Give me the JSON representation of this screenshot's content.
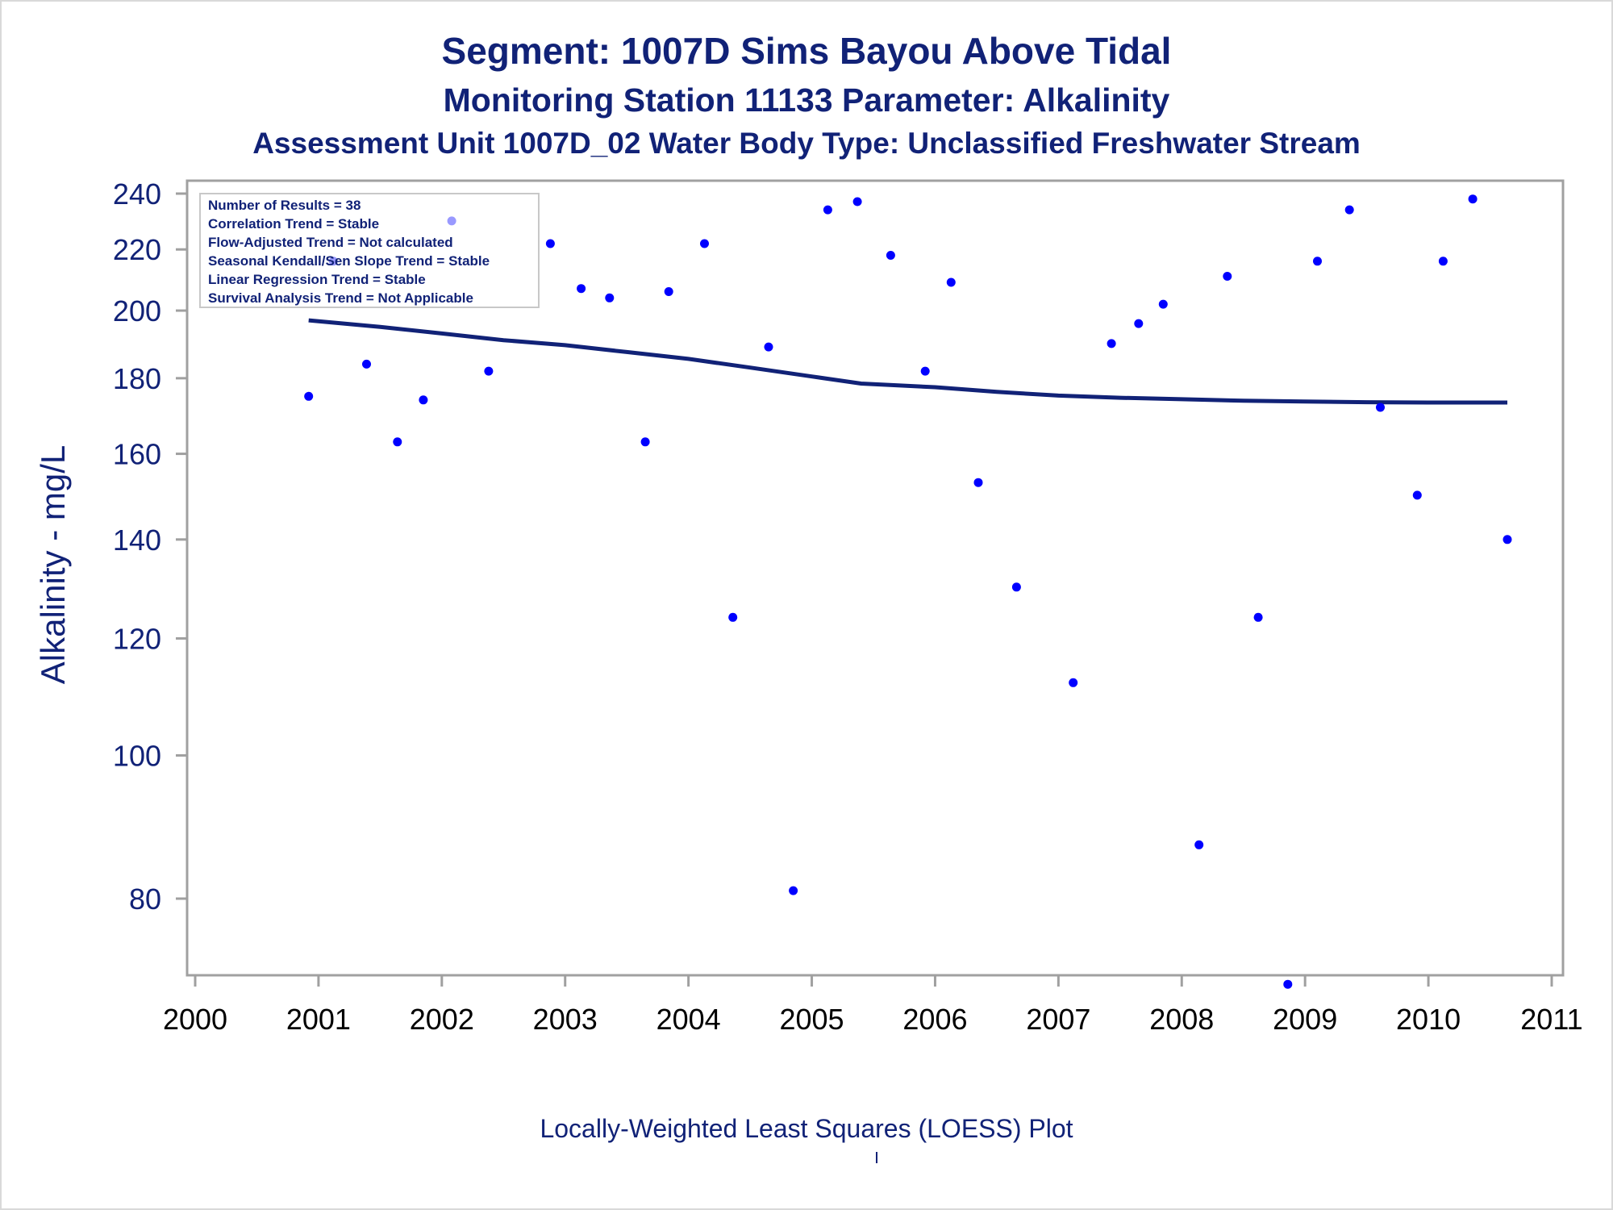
{
  "chart_data": {
    "type": "scatter",
    "title": "Segment: 1007D  Sims Bayou Above Tidal",
    "subtitle": "Monitoring Station 11133 Parameter: Alkalinity",
    "subtitle2": "Assessment Unit 1007D_02   Water Body Type: Unclassified Freshwater Stream",
    "xlabel": "",
    "ylabel": "Alkalinity - mg/L",
    "footnote": "Locally-Weighted Least Squares (LOESS) Plot",
    "footnote_mark": "'",
    "y_scale": "log",
    "xlim": [
      2000,
      2011
    ],
    "ylim": [
      70,
      245
    ],
    "x_ticks": [
      "2000",
      "2001",
      "2002",
      "2003",
      "2004",
      "2005",
      "2006",
      "2007",
      "2008",
      "2009",
      "2010",
      "2011"
    ],
    "y_ticks": [
      80,
      100,
      120,
      140,
      160,
      180,
      200,
      220,
      240
    ],
    "grid": false,
    "stats_box": [
      "Number of Results = 38",
      "Correlation Trend = Stable",
      "Flow-Adjusted Trend = Not calculated",
      "Seasonal Kendall/Sen Slope Trend = Stable",
      "Linear Regression Trend = Stable",
      "Survival Analysis Trend = Not Applicable"
    ],
    "stats_box_position": "top-left",
    "colors": {
      "points": "#0000ff",
      "loess": "#112277",
      "text": "#112277",
      "axis": "#a0a0a0"
    },
    "series": [
      {
        "type": "scatter",
        "x": [
          2000.92,
          2001.12,
          2001.39,
          2001.64,
          2001.85,
          2002.08,
          2002.38,
          2002.88,
          2003.13,
          2003.36,
          2003.65,
          2003.84,
          2004.13,
          2004.36,
          2004.65,
          2004.85,
          2005.13,
          2005.37,
          2005.64,
          2005.92,
          2006.13,
          2006.35,
          2006.66,
          2007.12,
          2007.43,
          2007.65,
          2007.85,
          2008.14,
          2008.37,
          2008.62,
          2008.86,
          2009.1,
          2009.36,
          2009.61,
          2009.91,
          2010.12,
          2010.36,
          2010.64
        ],
        "y": [
          175,
          216,
          184,
          163,
          174,
          230,
          182,
          222,
          207,
          204,
          163,
          206,
          222,
          124,
          189,
          81,
          234,
          237,
          218,
          182,
          209,
          153,
          130,
          112,
          190,
          196,
          202,
          87,
          211,
          124,
          70,
          216,
          234,
          172,
          150,
          216,
          238,
          140
        ]
      },
      {
        "type": "line",
        "x": [
          2000.92,
          2001.5,
          2002.0,
          2002.5,
          2003.0,
          2003.5,
          2004.0,
          2004.5,
          2005.0,
          2005.4,
          2005.7,
          2006.0,
          2006.5,
          2007.0,
          2007.5,
          2008.0,
          2008.5,
          2009.0,
          2009.5,
          2010.0,
          2010.5,
          2010.64
        ],
        "y": [
          197,
          195,
          193,
          191,
          189.5,
          187.5,
          185.5,
          183,
          180.5,
          178.5,
          178,
          177.5,
          176.2,
          175.2,
          174.6,
          174.2,
          173.8,
          173.6,
          173.4,
          173.3,
          173.3,
          173.3
        ]
      }
    ]
  }
}
